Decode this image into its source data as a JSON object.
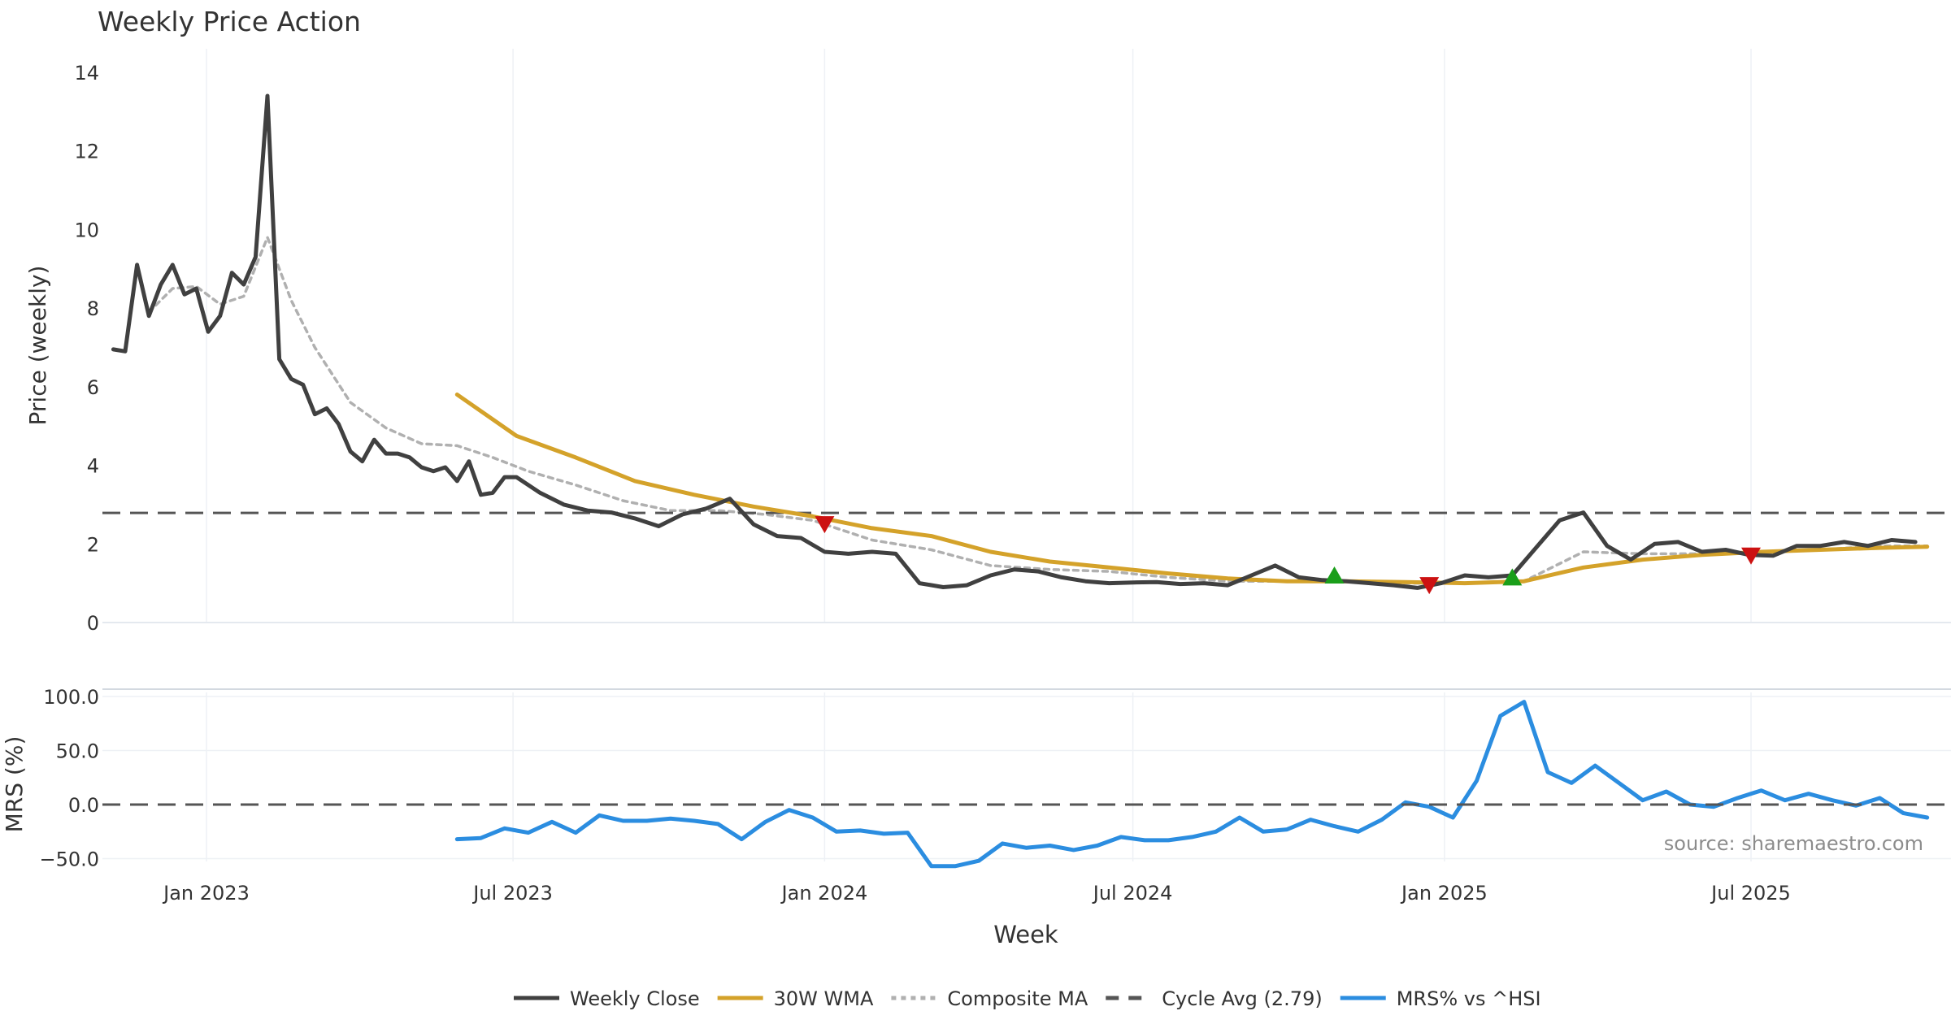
{
  "chart_data": [
    {
      "type": "line",
      "title": "Weekly Price Action",
      "xlabel": "",
      "ylabel": "Price (weekly)",
      "ylim": [
        0,
        14
      ],
      "yticks": [
        "0",
        "2",
        "4",
        "6",
        "8",
        "10",
        "12",
        "14"
      ],
      "grid": true,
      "series": [
        {
          "name": "Weekly Close",
          "color": "#404040",
          "style": "solid",
          "x": [
            "2022-11-07",
            "2022-11-14",
            "2022-11-21",
            "2022-11-28",
            "2022-12-05",
            "2022-12-12",
            "2022-12-19",
            "2022-12-26",
            "2023-01-02",
            "2023-01-09",
            "2023-01-16",
            "2023-01-23",
            "2023-01-30",
            "2023-02-06",
            "2023-02-13",
            "2023-02-20",
            "2023-02-27",
            "2023-03-06",
            "2023-03-13",
            "2023-03-20",
            "2023-03-27",
            "2023-04-03",
            "2023-04-10",
            "2023-04-17",
            "2023-04-24",
            "2023-05-01",
            "2023-05-08",
            "2023-05-15",
            "2023-05-22",
            "2023-05-29",
            "2023-06-05",
            "2023-06-12",
            "2023-06-19",
            "2023-06-26",
            "2023-07-03",
            "2023-07-17",
            "2023-07-31",
            "2023-08-14",
            "2023-08-28",
            "2023-09-11",
            "2023-09-25",
            "2023-10-09",
            "2023-10-23",
            "2023-11-06",
            "2023-11-20",
            "2023-12-04",
            "2023-12-18",
            "2024-01-01",
            "2024-01-15",
            "2024-01-29",
            "2024-02-12",
            "2024-02-26",
            "2024-03-11",
            "2024-03-25",
            "2024-04-08",
            "2024-04-22",
            "2024-05-06",
            "2024-05-20",
            "2024-06-03",
            "2024-06-17",
            "2024-07-01",
            "2024-07-15",
            "2024-07-29",
            "2024-08-12",
            "2024-08-26",
            "2024-09-09",
            "2024-09-23",
            "2024-10-07",
            "2024-10-21",
            "2024-11-04",
            "2024-11-18",
            "2024-12-02",
            "2024-12-16",
            "2024-12-30",
            "2025-01-13",
            "2025-01-27",
            "2025-02-10",
            "2025-02-24",
            "2025-03-10",
            "2025-03-24",
            "2025-04-07",
            "2025-04-21",
            "2025-05-05",
            "2025-05-19",
            "2025-06-02",
            "2025-06-16",
            "2025-06-30",
            "2025-07-14",
            "2025-07-28",
            "2025-08-11",
            "2025-08-25",
            "2025-09-08",
            "2025-09-22",
            "2025-10-06"
          ],
          "values": [
            6.95,
            6.9,
            9.1,
            7.8,
            8.6,
            9.1,
            8.35,
            8.5,
            7.4,
            7.8,
            8.9,
            8.6,
            9.3,
            13.4,
            6.7,
            6.2,
            6.05,
            5.3,
            5.45,
            5.05,
            4.35,
            4.1,
            4.65,
            4.3,
            4.3,
            4.2,
            3.95,
            3.85,
            3.95,
            3.6,
            4.1,
            3.25,
            3.3,
            3.7,
            3.7,
            3.3,
            3.0,
            2.85,
            2.8,
            2.65,
            2.45,
            2.75,
            2.9,
            3.15,
            2.5,
            2.2,
            2.15,
            1.8,
            1.75,
            1.8,
            1.75,
            1.0,
            0.9,
            0.95,
            1.2,
            1.35,
            1.3,
            1.15,
            1.05,
            1.0,
            1.02,
            1.03,
            0.98,
            1.0,
            0.95,
            1.2,
            1.45,
            1.15,
            1.08,
            1.05,
            1.0,
            0.95,
            0.88,
            1.0,
            1.2,
            1.15,
            1.2,
            1.9,
            2.6,
            2.8,
            1.95,
            1.6,
            2.0,
            2.05,
            1.8,
            1.85,
            1.72,
            1.7,
            1.95,
            1.95,
            2.05,
            1.95,
            2.1,
            2.05
          ]
        },
        {
          "name": "30W WMA",
          "color": "#d4a22a",
          "style": "solid",
          "x": [
            "2023-05-29",
            "2023-07-03",
            "2023-08-07",
            "2023-09-11",
            "2023-10-16",
            "2023-11-20",
            "2023-12-25",
            "2024-01-29",
            "2024-03-04",
            "2024-04-08",
            "2024-05-13",
            "2024-06-17",
            "2024-07-22",
            "2024-08-26",
            "2024-09-30",
            "2024-11-04",
            "2024-12-09",
            "2025-01-13",
            "2025-02-17",
            "2025-03-24",
            "2025-04-28",
            "2025-06-02",
            "2025-07-07",
            "2025-08-11",
            "2025-09-15",
            "2025-10-13"
          ],
          "values": [
            5.8,
            4.75,
            4.2,
            3.6,
            3.25,
            2.95,
            2.7,
            2.4,
            2.2,
            1.8,
            1.55,
            1.4,
            1.25,
            1.12,
            1.05,
            1.05,
            1.03,
            1.0,
            1.05,
            1.4,
            1.6,
            1.72,
            1.8,
            1.85,
            1.9,
            1.93
          ]
        },
        {
          "name": "Composite MA",
          "color": "#b0b0b0",
          "style": "dotted",
          "x": [
            "2022-11-28",
            "2022-12-12",
            "2022-12-26",
            "2023-01-09",
            "2023-01-23",
            "2023-02-06",
            "2023-02-20",
            "2023-03-06",
            "2023-03-27",
            "2023-04-17",
            "2023-05-08",
            "2023-05-29",
            "2023-06-19",
            "2023-07-10",
            "2023-08-07",
            "2023-09-04",
            "2023-10-02",
            "2023-10-30",
            "2023-11-27",
            "2023-12-25",
            "2024-01-29",
            "2024-03-04",
            "2024-04-08",
            "2024-05-13",
            "2024-06-17",
            "2024-07-22",
            "2024-08-26",
            "2024-09-30",
            "2024-11-04",
            "2024-12-09",
            "2025-01-13",
            "2025-02-17",
            "2025-03-10",
            "2025-03-24",
            "2025-04-28",
            "2025-06-02",
            "2025-07-07",
            "2025-08-11",
            "2025-09-15",
            "2025-10-13"
          ],
          "values": [
            7.9,
            8.5,
            8.55,
            8.1,
            8.3,
            9.8,
            8.2,
            7.0,
            5.6,
            4.95,
            4.55,
            4.5,
            4.2,
            3.85,
            3.5,
            3.1,
            2.85,
            2.85,
            2.75,
            2.6,
            2.1,
            1.85,
            1.45,
            1.35,
            1.3,
            1.15,
            1.05,
            1.05,
            1.05,
            1.0,
            1.0,
            1.05,
            1.5,
            1.8,
            1.75,
            1.75,
            1.8,
            1.85,
            1.95,
            1.95
          ]
        },
        {
          "name": "Cycle Avg (2.79)",
          "color": "#555555",
          "style": "dashed",
          "value": 2.79
        }
      ],
      "markers": [
        {
          "type": "sell",
          "date": "2024-01-01",
          "value": 2.5,
          "color": "#cc1111"
        },
        {
          "type": "buy",
          "date": "2024-10-28",
          "value": 1.2,
          "color": "#1a9e1a"
        },
        {
          "type": "sell",
          "date": "2024-12-23",
          "value": 0.95,
          "color": "#cc1111"
        },
        {
          "type": "buy",
          "date": "2025-02-10",
          "value": 1.15,
          "color": "#1a9e1a"
        },
        {
          "type": "sell",
          "date": "2025-07-01",
          "value": 1.7,
          "color": "#cc1111"
        }
      ]
    },
    {
      "type": "line",
      "title": "",
      "xlabel": "Week",
      "ylabel": "MRS (%)",
      "ylim": [
        -60,
        100
      ],
      "yticks": [
        "−50.0",
        "0.0",
        "50.0",
        "100.0"
      ],
      "xticks": [
        "Jan 2023",
        "Jul 2023",
        "Jan 2024",
        "Jul 2024",
        "Jan 2025",
        "Jul 2025"
      ],
      "annotation": "source: sharemaestro.com",
      "series": [
        {
          "name": "MRS% vs ^HSI",
          "color": "#2b8de0",
          "style": "solid",
          "x": [
            "2023-05-29",
            "2023-06-12",
            "2023-06-26",
            "2023-07-10",
            "2023-07-24",
            "2023-08-07",
            "2023-08-21",
            "2023-09-04",
            "2023-09-18",
            "2023-10-02",
            "2023-10-16",
            "2023-10-30",
            "2023-11-13",
            "2023-11-27",
            "2023-12-11",
            "2023-12-25",
            "2024-01-08",
            "2024-01-22",
            "2024-02-05",
            "2024-02-19",
            "2024-03-04",
            "2024-03-18",
            "2024-04-01",
            "2024-04-15",
            "2024-04-29",
            "2024-05-13",
            "2024-05-27",
            "2024-06-10",
            "2024-06-24",
            "2024-07-08",
            "2024-07-22",
            "2024-08-05",
            "2024-08-19",
            "2024-09-02",
            "2024-09-16",
            "2024-09-30",
            "2024-10-14",
            "2024-10-28",
            "2024-11-11",
            "2024-11-25",
            "2024-12-09",
            "2024-12-23",
            "2025-01-06",
            "2025-01-20",
            "2025-02-03",
            "2025-02-17",
            "2025-03-03",
            "2025-03-17",
            "2025-03-31",
            "2025-04-14",
            "2025-04-28",
            "2025-05-12",
            "2025-05-26",
            "2025-06-09",
            "2025-06-23",
            "2025-07-07",
            "2025-07-21",
            "2025-08-04",
            "2025-08-18",
            "2025-09-01",
            "2025-09-15",
            "2025-09-29",
            "2025-10-13"
          ],
          "values": [
            -32,
            -31,
            -22,
            -26,
            -16,
            -26,
            -10,
            -15,
            -15,
            -13,
            -15,
            -18,
            -32,
            -16,
            -5,
            -12,
            -25,
            -24,
            -27,
            -26,
            -57,
            -57,
            -52,
            -36,
            -40,
            -38,
            -42,
            -38,
            -30,
            -33,
            -33,
            -30,
            -25,
            -12,
            -25,
            -23,
            -14,
            -20,
            -25,
            -14,
            2,
            -2,
            -12,
            22,
            82,
            95,
            30,
            20,
            36,
            20,
            4,
            12,
            0,
            -2,
            6,
            13,
            4,
            10,
            4,
            -1,
            6,
            -8,
            -12
          ]
        },
        {
          "name": "Zero line",
          "color": "#555555",
          "style": "dashed",
          "value": 0
        }
      ]
    }
  ],
  "legend": {
    "placement": "bottom-center",
    "items": [
      {
        "label": "Weekly Close",
        "color": "#404040",
        "style": "solid"
      },
      {
        "label": "30W WMA",
        "color": "#d4a22a",
        "style": "solid"
      },
      {
        "label": "Composite MA",
        "color": "#b0b0b0",
        "style": "dotted"
      },
      {
        "label": "Cycle Avg (2.79)",
        "color": "#555555",
        "style": "dashed"
      },
      {
        "label": "MRS% vs ^HSI",
        "color": "#2b8de0",
        "style": "solid"
      }
    ]
  }
}
